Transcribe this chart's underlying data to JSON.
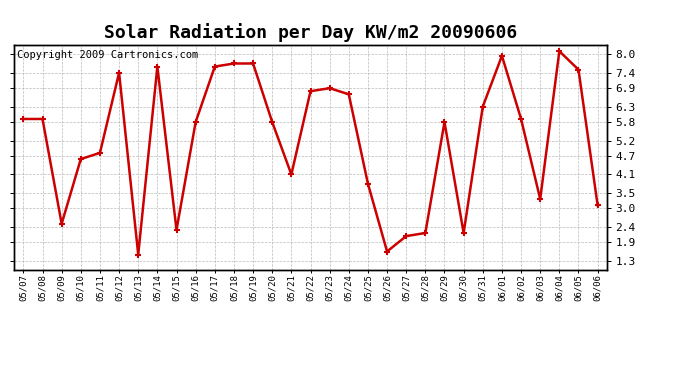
{
  "title": "Solar Radiation per Day KW/m2 20090606",
  "copyright": "Copyright 2009 Cartronics.com",
  "dates": [
    "05/07",
    "05/08",
    "05/09",
    "05/10",
    "05/11",
    "05/12",
    "05/13",
    "05/14",
    "05/15",
    "05/16",
    "05/17",
    "05/18",
    "05/19",
    "05/20",
    "05/21",
    "05/22",
    "05/23",
    "05/24",
    "05/25",
    "05/26",
    "05/27",
    "05/28",
    "05/29",
    "05/30",
    "05/31",
    "06/01",
    "06/02",
    "06/03",
    "06/04",
    "06/05",
    "06/06"
  ],
  "values": [
    5.9,
    5.9,
    2.5,
    4.6,
    4.8,
    7.4,
    1.5,
    7.6,
    2.3,
    5.8,
    7.6,
    7.7,
    7.7,
    5.8,
    4.1,
    6.8,
    6.9,
    6.7,
    3.8,
    1.6,
    2.1,
    2.2,
    5.8,
    2.2,
    6.3,
    7.95,
    5.9,
    3.3,
    8.1,
    7.5,
    3.1
  ],
  "line_color": "#cc0000",
  "marker_color": "#cc0000",
  "bg_color": "#ffffff",
  "plot_bg_color": "#ffffff",
  "grid_color": "#aaaaaa",
  "yticks": [
    1.3,
    1.9,
    2.4,
    3.0,
    3.5,
    4.1,
    4.7,
    5.2,
    5.8,
    6.3,
    6.9,
    7.4,
    8.0
  ],
  "ylim": [
    1.0,
    8.3
  ],
  "title_fontsize": 13,
  "copyright_fontsize": 7.5
}
